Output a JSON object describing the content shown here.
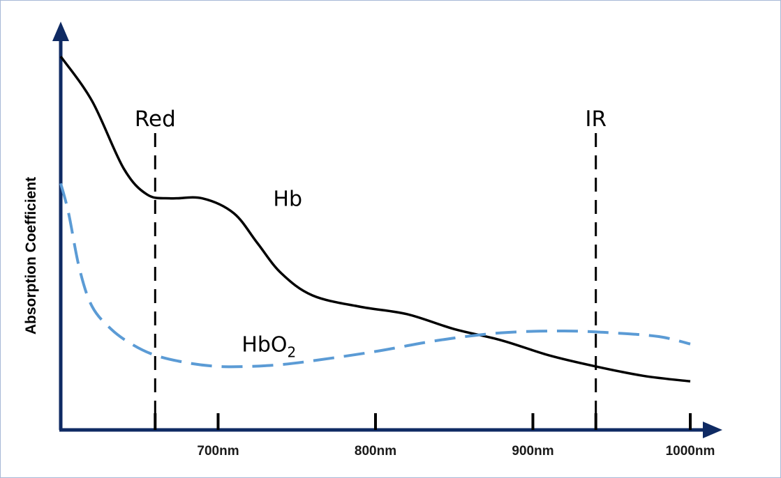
{
  "chart_data": {
    "type": "line",
    "title": "",
    "xlabel": "",
    "ylabel": "Absorption Coefficient",
    "xlim": [
      600,
      1000
    ],
    "ylim": [
      0,
      100
    ],
    "grid": false,
    "legend": "none",
    "x_ticks": [
      {
        "value": 700,
        "label": "700nm"
      },
      {
        "value": 800,
        "label": "800nm"
      },
      {
        "value": 900,
        "label": "900nm"
      },
      {
        "value": 1000,
        "label": "1000nm"
      }
    ],
    "markers": [
      {
        "label": "Red",
        "x": 660
      },
      {
        "label": "IR",
        "x": 940
      }
    ],
    "series": [
      {
        "name": "Hb",
        "name_main": "Hb",
        "name_sub": "",
        "color": "#000000",
        "dash": "solid",
        "label_at": [
          735,
          60
        ],
        "points": [
          [
            600,
            100
          ],
          [
            620,
            88
          ],
          [
            640,
            70
          ],
          [
            655,
            63
          ],
          [
            670,
            62
          ],
          [
            690,
            62
          ],
          [
            710,
            58
          ],
          [
            725,
            50
          ],
          [
            740,
            42
          ],
          [
            760,
            36
          ],
          [
            790,
            33
          ],
          [
            820,
            31
          ],
          [
            850,
            27
          ],
          [
            880,
            24
          ],
          [
            910,
            20
          ],
          [
            940,
            17
          ],
          [
            970,
            14.5
          ],
          [
            1000,
            13
          ]
        ]
      },
      {
        "name": "HbO2",
        "name_main": "HbO",
        "name_sub": "2",
        "color": "#5b9bd5",
        "dash": "dashed",
        "label_at": [
          715,
          21
        ],
        "points": [
          [
            600,
            66
          ],
          [
            605,
            58
          ],
          [
            612,
            43
          ],
          [
            620,
            33
          ],
          [
            632,
            27
          ],
          [
            645,
            23
          ],
          [
            660,
            20
          ],
          [
            680,
            18
          ],
          [
            700,
            17
          ],
          [
            720,
            17
          ],
          [
            740,
            17.5
          ],
          [
            760,
            18.5
          ],
          [
            800,
            21
          ],
          [
            840,
            24
          ],
          [
            880,
            26
          ],
          [
            920,
            26.5
          ],
          [
            950,
            26
          ],
          [
            980,
            25
          ],
          [
            1000,
            23
          ]
        ]
      }
    ]
  }
}
